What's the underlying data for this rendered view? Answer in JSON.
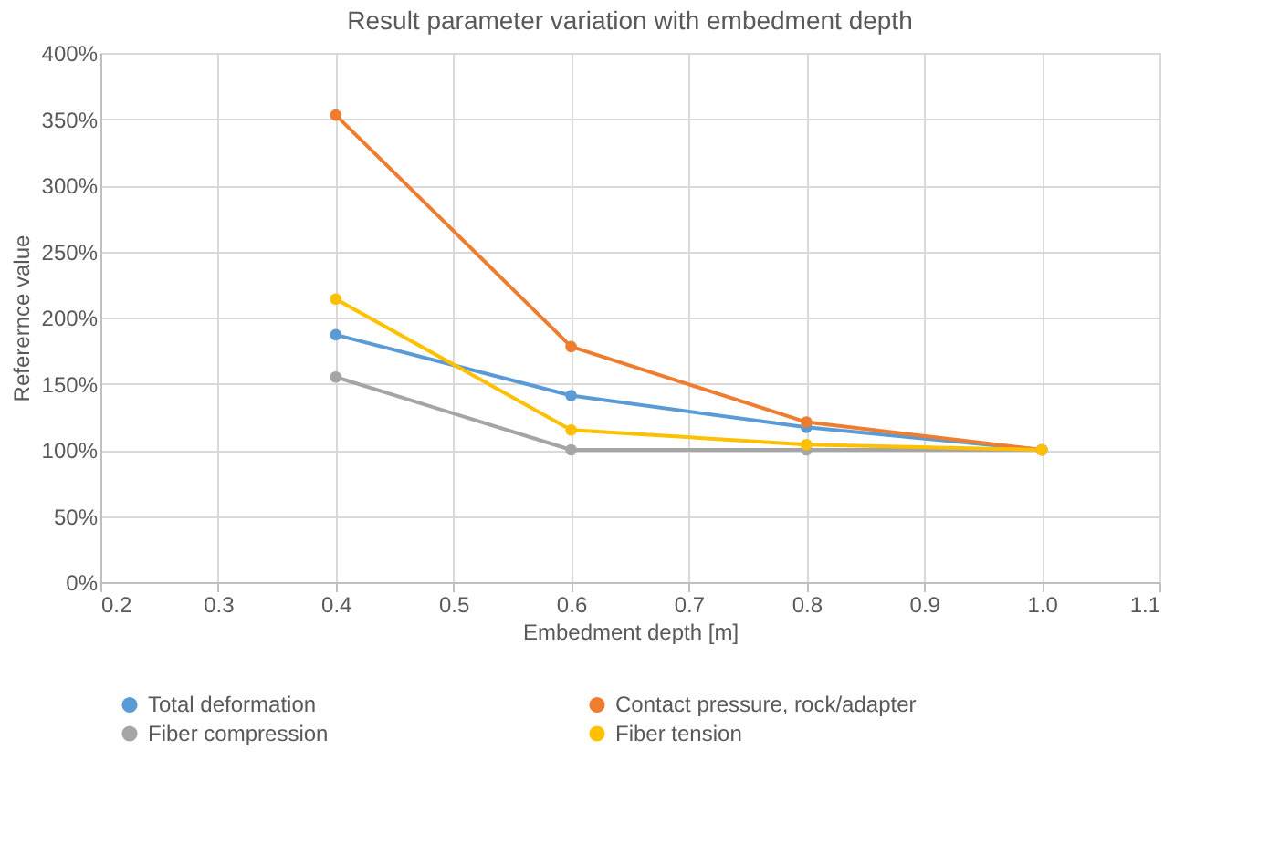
{
  "chart_data": {
    "type": "line",
    "title": "Result parameter variation with embedment depth",
    "xlabel": "Embedment depth [m]",
    "ylabel": "Referernce value",
    "x": [
      0.4,
      0.6,
      0.8,
      1.0
    ],
    "series": [
      {
        "name": "Total deformation",
        "color": "#5b9bd5",
        "values": [
          187,
          141,
          117,
          100
        ]
      },
      {
        "name": "Contact pressure, rock/adapter",
        "color": "#ed7d31",
        "values": [
          353,
          178,
          121,
          100
        ]
      },
      {
        "name": "Fiber compression",
        "color": "#a5a5a5",
        "values": [
          155,
          100,
          100,
          100
        ]
      },
      {
        "name": "Fiber tension",
        "color": "#ffc000",
        "values": [
          214,
          115,
          104,
          100
        ]
      }
    ],
    "xlim": [
      0.2,
      1.1
    ],
    "xticks": [
      {
        "value": 0.2,
        "label": "0.2"
      },
      {
        "value": 0.3,
        "label": "0.3"
      },
      {
        "value": 0.4,
        "label": "0.4"
      },
      {
        "value": 0.5,
        "label": "0.5"
      },
      {
        "value": 0.6,
        "label": "0.6"
      },
      {
        "value": 0.7,
        "label": "0.7"
      },
      {
        "value": 0.8,
        "label": "0.8"
      },
      {
        "value": 0.9,
        "label": "0.9"
      },
      {
        "value": 1.0,
        "label": "1.0"
      },
      {
        "value": 1.1,
        "label": "1.1"
      }
    ],
    "ylim": [
      0,
      400
    ],
    "yticks": [
      {
        "value": 0,
        "label": "0%"
      },
      {
        "value": 50,
        "label": "50%"
      },
      {
        "value": 100,
        "label": "100%"
      },
      {
        "value": 150,
        "label": "150%"
      },
      {
        "value": 200,
        "label": "200%"
      },
      {
        "value": 250,
        "label": "250%"
      },
      {
        "value": 300,
        "label": "300%"
      },
      {
        "value": 350,
        "label": "350%"
      },
      {
        "value": 400,
        "label": "400%"
      }
    ],
    "grid": true,
    "legend": "bottom",
    "marker": "circle",
    "line_style": "solid"
  }
}
